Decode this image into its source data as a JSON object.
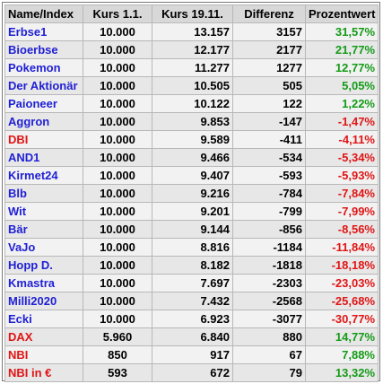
{
  "table": {
    "headers": [
      "Name/Index",
      "Kurs 1.1.",
      "Kurs 19.11.",
      "Differenz",
      "Prozentwert"
    ],
    "rows": [
      {
        "name": "Erbse1",
        "kurs_start": "10.000",
        "kurs_now": "13.157",
        "diff": "3157",
        "pct": "31,57%",
        "name_color": "blue",
        "pct_color": "green"
      },
      {
        "name": "Bioerbse",
        "kurs_start": "10.000",
        "kurs_now": "12.177",
        "diff": "2177",
        "pct": "21,77%",
        "name_color": "blue",
        "pct_color": "green"
      },
      {
        "name": "Pokemon",
        "kurs_start": "10.000",
        "kurs_now": "11.277",
        "diff": "1277",
        "pct": "12,77%",
        "name_color": "blue",
        "pct_color": "green"
      },
      {
        "name": "Der Aktionär",
        "kurs_start": "10.000",
        "kurs_now": "10.505",
        "diff": "505",
        "pct": "5,05%",
        "name_color": "blue",
        "pct_color": "green"
      },
      {
        "name": "Paioneer",
        "kurs_start": "10.000",
        "kurs_now": "10.122",
        "diff": "122",
        "pct": "1,22%",
        "name_color": "blue",
        "pct_color": "green"
      },
      {
        "name": "Aggron",
        "kurs_start": "10.000",
        "kurs_now": "9.853",
        "diff": "-147",
        "pct": "-1,47%",
        "name_color": "blue",
        "pct_color": "red"
      },
      {
        "name": "DBI",
        "kurs_start": "10.000",
        "kurs_now": "9.589",
        "diff": "-411",
        "pct": "-4,11%",
        "name_color": "red",
        "pct_color": "red"
      },
      {
        "name": "AND1",
        "kurs_start": "10.000",
        "kurs_now": "9.466",
        "diff": "-534",
        "pct": "-5,34%",
        "name_color": "blue",
        "pct_color": "red"
      },
      {
        "name": "Kirmet24",
        "kurs_start": "10.000",
        "kurs_now": "9.407",
        "diff": "-593",
        "pct": "-5,93%",
        "name_color": "blue",
        "pct_color": "red"
      },
      {
        "name": "Blb",
        "kurs_start": "10.000",
        "kurs_now": "9.216",
        "diff": "-784",
        "pct": "-7,84%",
        "name_color": "blue",
        "pct_color": "red"
      },
      {
        "name": "Wit",
        "kurs_start": "10.000",
        "kurs_now": "9.201",
        "diff": "-799",
        "pct": "-7,99%",
        "name_color": "blue",
        "pct_color": "red"
      },
      {
        "name": "Bär",
        "kurs_start": "10.000",
        "kurs_now": "9.144",
        "diff": "-856",
        "pct": "-8,56%",
        "name_color": "blue",
        "pct_color": "red"
      },
      {
        "name": "VaJo",
        "kurs_start": "10.000",
        "kurs_now": "8.816",
        "diff": "-1184",
        "pct": "-11,84%",
        "name_color": "blue",
        "pct_color": "red"
      },
      {
        "name": "Hopp D.",
        "kurs_start": "10.000",
        "kurs_now": "8.182",
        "diff": "-1818",
        "pct": "-18,18%",
        "name_color": "blue",
        "pct_color": "red"
      },
      {
        "name": "Kmastra",
        "kurs_start": "10.000",
        "kurs_now": "7.697",
        "diff": "-2303",
        "pct": "-23,03%",
        "name_color": "blue",
        "pct_color": "red"
      },
      {
        "name": "Milli2020",
        "kurs_start": "10.000",
        "kurs_now": "7.432",
        "diff": "-2568",
        "pct": "-25,68%",
        "name_color": "blue",
        "pct_color": "red"
      },
      {
        "name": "Ecki",
        "kurs_start": "10.000",
        "kurs_now": "6.923",
        "diff": "-3077",
        "pct": "-30,77%",
        "name_color": "blue",
        "pct_color": "red"
      },
      {
        "name": "DAX",
        "kurs_start": "5.960",
        "kurs_now": "6.840",
        "diff": "880",
        "pct": "14,77%",
        "name_color": "red",
        "pct_color": "green"
      },
      {
        "name": "NBI",
        "kurs_start": "850",
        "kurs_now": "917",
        "diff": "67",
        "pct": "7,88%",
        "name_color": "red",
        "pct_color": "green"
      },
      {
        "name": "NBI in €",
        "kurs_start": "593",
        "kurs_now": "672",
        "diff": "79",
        "pct": "13,32%",
        "name_color": "red",
        "pct_color": "green"
      }
    ]
  },
  "colors": {
    "blue": "#1f1fd6",
    "red": "#e01515",
    "green": "#159b18"
  }
}
